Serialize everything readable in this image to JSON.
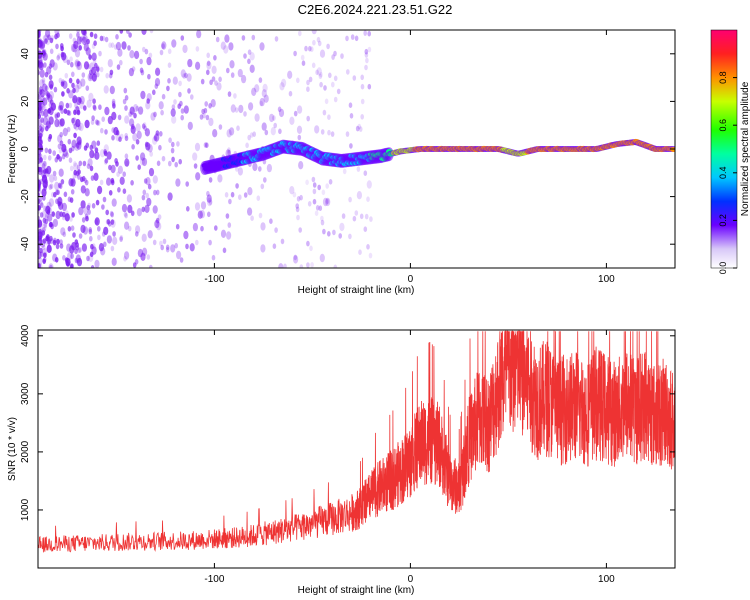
{
  "title": "C2E6.2024.221.23.51.G22",
  "colors": {
    "snr_line": "#ee3333",
    "axis": "#000000",
    "scatter": "#7a1cf0",
    "spectrum_strong": "#ee2222"
  },
  "chart_data": [
    {
      "type": "heatmap",
      "name": "spectrogram",
      "xlabel": "Height of straight line (km)",
      "ylabel": "Frequency (Hz)",
      "xlim": [
        -190,
        135
      ],
      "ylim": [
        -50,
        50
      ],
      "xticks": [
        -100,
        0,
        100
      ],
      "xtick_labels": [
        "-100",
        "0",
        "100"
      ],
      "yticks": [
        -40,
        -20,
        0,
        20,
        40
      ],
      "ytick_labels": [
        "-40",
        "-20",
        "0",
        "20",
        "40"
      ],
      "colorbar": {
        "label": "Normalized spectral amplitude",
        "range": [
          0,
          1
        ],
        "ticks": [
          0.0,
          0.2,
          0.4,
          0.6,
          0.8
        ],
        "tick_labels": [
          "0.0",
          "0.2",
          "0.4",
          "0.6",
          "0.8"
        ]
      },
      "ridge": [
        {
          "x": -105,
          "f": -8,
          "a": 0.25
        },
        {
          "x": -95,
          "f": -6,
          "a": 0.35
        },
        {
          "x": -85,
          "f": -4,
          "a": 0.45
        },
        {
          "x": -75,
          "f": -2,
          "a": 0.45
        },
        {
          "x": -65,
          "f": 1,
          "a": 0.45
        },
        {
          "x": -55,
          "f": 0,
          "a": 0.45
        },
        {
          "x": -45,
          "f": -4,
          "a": 0.45
        },
        {
          "x": -35,
          "f": -5,
          "a": 0.45
        },
        {
          "x": -25,
          "f": -4,
          "a": 0.5
        },
        {
          "x": -15,
          "f": -3,
          "a": 0.6
        },
        {
          "x": -5,
          "f": -1,
          "a": 0.75
        },
        {
          "x": 5,
          "f": 0,
          "a": 0.85
        },
        {
          "x": 15,
          "f": 0,
          "a": 0.9
        },
        {
          "x": 25,
          "f": 0,
          "a": 0.9
        },
        {
          "x": 35,
          "f": 0,
          "a": 0.9
        },
        {
          "x": 45,
          "f": 0,
          "a": 0.85
        },
        {
          "x": 55,
          "f": -2,
          "a": 0.7
        },
        {
          "x": 65,
          "f": 0,
          "a": 0.95
        },
        {
          "x": 75,
          "f": 0,
          "a": 0.95
        },
        {
          "x": 85,
          "f": 0,
          "a": 0.9
        },
        {
          "x": 95,
          "f": 0,
          "a": 0.9
        },
        {
          "x": 105,
          "f": 2,
          "a": 0.9
        },
        {
          "x": 115,
          "f": 3,
          "a": 0.9
        },
        {
          "x": 125,
          "f": 0,
          "a": 0.9
        },
        {
          "x": 135,
          "f": 0,
          "a": 0.85
        }
      ]
    },
    {
      "type": "line",
      "name": "snr",
      "xlabel": "Height of straight line (km)",
      "ylabel": "SNR (10 * v/v)",
      "xlim": [
        -190,
        135
      ],
      "ylim": [
        0,
        4100
      ],
      "xticks": [
        -100,
        0,
        100
      ],
      "xtick_labels": [
        "-100",
        "0",
        "100"
      ],
      "yticks": [
        1000,
        2000,
        3000,
        4000
      ],
      "ytick_labels": [
        "1000",
        "2000",
        "3000",
        "4000"
      ],
      "series": [
        {
          "name": "SNR",
          "x": [
            -190,
            -175,
            -160,
            -145,
            -130,
            -115,
            -100,
            -90,
            -80,
            -70,
            -60,
            -50,
            -40,
            -30,
            -25,
            -20,
            -15,
            -10,
            -5,
            0,
            5,
            10,
            15,
            20,
            25,
            30,
            35,
            40,
            45,
            50,
            55,
            60,
            65,
            70,
            75,
            80,
            85,
            90,
            95,
            100,
            105,
            110,
            115,
            120,
            125,
            130,
            135
          ],
          "values": [
            400,
            420,
            430,
            450,
            460,
            470,
            500,
            520,
            560,
            620,
            680,
            760,
            850,
            950,
            1050,
            1250,
            1400,
            1500,
            1650,
            1850,
            2150,
            2200,
            2100,
            1500,
            1350,
            2200,
            2600,
            2500,
            3100,
            3400,
            3500,
            3200,
            2850,
            2950,
            2700,
            2750,
            2800,
            2650,
            2850,
            2750,
            2650,
            2850,
            2700,
            2850,
            2600,
            2700,
            2500
          ]
        }
      ]
    }
  ]
}
